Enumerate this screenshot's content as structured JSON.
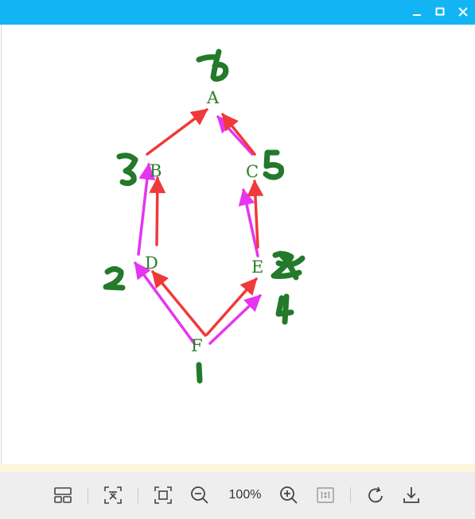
{
  "window": {
    "controls": [
      "minimize-icon",
      "maximize-icon",
      "close-icon"
    ],
    "accent_color": "#12b4f4"
  },
  "graph": {
    "nodes": [
      {
        "id": "A",
        "label": "A"
      },
      {
        "id": "B",
        "label": "B"
      },
      {
        "id": "C",
        "label": "C"
      },
      {
        "id": "D",
        "label": "D"
      },
      {
        "id": "E",
        "label": "E"
      },
      {
        "id": "F",
        "label": "F"
      }
    ],
    "edges": [
      {
        "from": "B",
        "to": "A",
        "color": "#f0393b"
      },
      {
        "from": "C",
        "to": "A",
        "color": "#e535f0"
      },
      {
        "from": "C",
        "to": "A",
        "color": "#f0393b"
      },
      {
        "from": "D",
        "to": "B",
        "color": "#e535f0"
      },
      {
        "from": "D",
        "to": "B",
        "color": "#f0393b"
      },
      {
        "from": "E",
        "to": "C",
        "color": "#e535f0"
      },
      {
        "from": "E",
        "to": "C",
        "color": "#f0393b"
      },
      {
        "from": "F",
        "to": "D",
        "color": "#e535f0"
      },
      {
        "from": "F",
        "to": "D",
        "color": "#f0393b"
      },
      {
        "from": "F",
        "to": "E",
        "color": "#f0393b"
      },
      {
        "from": "F",
        "to": "E",
        "color": "#e535f0"
      }
    ],
    "handwritten_annotations": [
      "6",
      "3",
      "5",
      "2",
      "4",
      "1"
    ],
    "ink_color": "#227a2a"
  },
  "toolbar": {
    "zoom_level": "100%",
    "buttons": [
      "layout-icon",
      "fit-text-icon",
      "fit-window-icon",
      "zoom-out-icon",
      "zoom-in-icon",
      "actual-size-icon",
      "rotate-icon",
      "download-icon"
    ]
  }
}
